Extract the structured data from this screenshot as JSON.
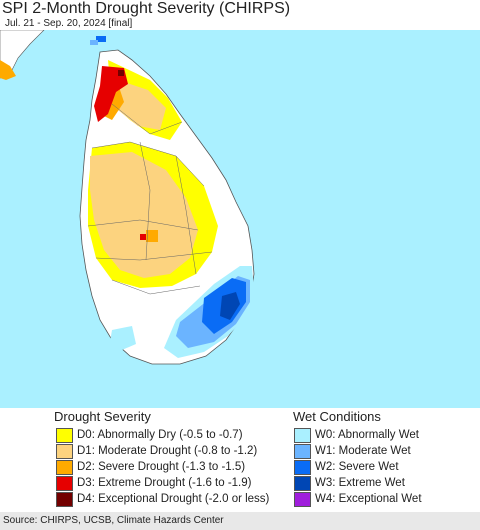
{
  "title": "SPI 2-Month Drought Severity (CHIRPS)",
  "subtitle": "Jul. 21 - Sep. 20, 2024 [final]",
  "legend": {
    "drought_title": "Drought Severity",
    "wet_title": "Wet Conditions",
    "drought": [
      {
        "label": "D0: Abnormally Dry (-0.5 to -0.7)",
        "color": "#ffff00"
      },
      {
        "label": "D1: Moderate Drought (-0.8 to -1.2)",
        "color": "#fcd37f"
      },
      {
        "label": "D2: Severe Drought (-1.3 to -1.5)",
        "color": "#ffaa00"
      },
      {
        "label": "D3: Extreme Drought (-1.6 to -1.9)",
        "color": "#e60000"
      },
      {
        "label": "D4: Exceptional Drought (-2.0 or less)",
        "color": "#730000"
      }
    ],
    "wet": [
      {
        "label": "W0: Abnormally Wet",
        "color": "#aaf0ff"
      },
      {
        "label": "W1: Moderate Wet",
        "color": "#6bb4ff"
      },
      {
        "label": "W2: Severe Wet",
        "color": "#0a6cf5"
      },
      {
        "label": "W3: Extreme Wet",
        "color": "#0046b4"
      },
      {
        "label": "W4: Exceptional Wet",
        "color": "#a01edc"
      }
    ]
  },
  "map": {
    "ocean_color": "#aaf0ff",
    "land_color": "#ffffff"
  },
  "source": "Source: CHIRPS, UCSB, Climate Hazards Center"
}
